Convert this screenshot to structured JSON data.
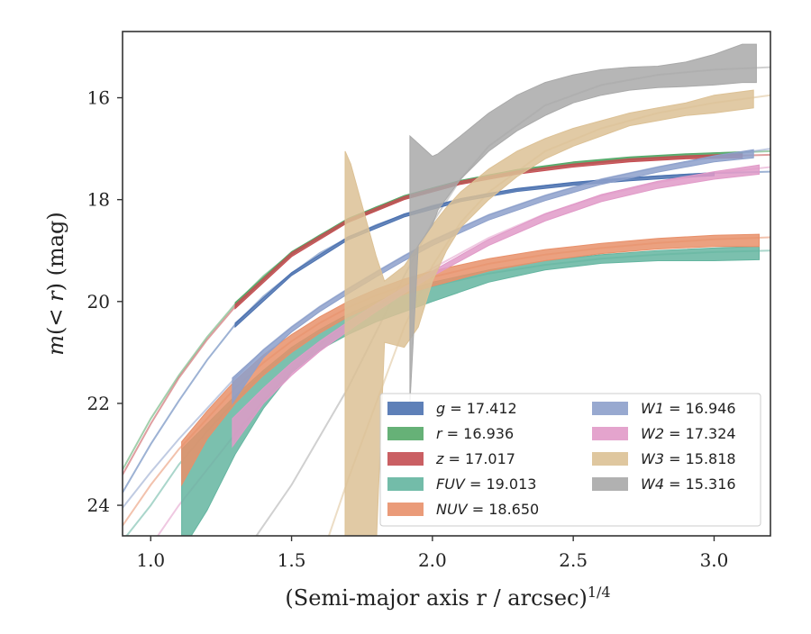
{
  "chart_data": {
    "type": "line",
    "xlabel": "(Semi-major axis r / arcsec)",
    "xlabel_exponent": "1/4",
    "ylabel": "m(< r) (mag)",
    "xlim": [
      0.9,
      3.2
    ],
    "ylim": [
      24.6,
      14.7
    ],
    "y_inverted": true,
    "xticks": [
      1.0,
      1.5,
      2.0,
      2.5,
      3.0
    ],
    "xtick_labels": [
      "1.0",
      "1.5",
      "2.0",
      "2.5",
      "3.0"
    ],
    "yticks": [
      16,
      18,
      20,
      22,
      24
    ],
    "ytick_labels": [
      "16",
      "18",
      "20",
      "22",
      "24"
    ],
    "grid": false,
    "legend_position": "lower-right",
    "legend_columns": 2,
    "series": [
      {
        "id": "g",
        "label": "g = 17.412",
        "color": "#4c72b0",
        "fit": [
          [
            0.9,
            23.75
          ],
          [
            1.0,
            22.8
          ],
          [
            1.1,
            21.95
          ],
          [
            1.2,
            21.15
          ],
          [
            1.3,
            20.45
          ],
          [
            1.4,
            19.9
          ],
          [
            1.5,
            19.45
          ],
          [
            1.6,
            19.05
          ],
          [
            1.7,
            18.75
          ],
          [
            1.8,
            18.5
          ],
          [
            1.9,
            18.3
          ],
          [
            2.0,
            18.12
          ],
          [
            2.2,
            17.88
          ],
          [
            2.4,
            17.73
          ],
          [
            2.6,
            17.62
          ],
          [
            2.8,
            17.54
          ],
          [
            3.0,
            17.48
          ],
          [
            3.2,
            17.45
          ]
        ],
        "band": {
          "x": [
            1.3,
            1.5,
            1.7,
            1.9,
            2.1,
            2.3,
            2.5,
            2.7,
            2.9,
            3.0
          ],
          "lo": [
            20.42,
            19.43,
            18.73,
            18.28,
            17.98,
            17.78,
            17.66,
            17.57,
            17.5,
            17.47
          ],
          "hi": [
            20.5,
            19.49,
            18.79,
            18.34,
            18.04,
            17.84,
            17.72,
            17.63,
            17.56,
            17.53
          ]
        }
      },
      {
        "id": "r",
        "label": "r = 16.936",
        "color": "#55a868",
        "fit": [
          [
            0.9,
            23.3
          ],
          [
            1.0,
            22.3
          ],
          [
            1.1,
            21.45
          ],
          [
            1.2,
            20.7
          ],
          [
            1.3,
            20.05
          ],
          [
            1.4,
            19.5
          ],
          [
            1.5,
            19.05
          ],
          [
            1.6,
            18.7
          ],
          [
            1.7,
            18.4
          ],
          [
            1.8,
            18.15
          ],
          [
            1.9,
            17.95
          ],
          [
            2.0,
            17.78
          ],
          [
            2.2,
            17.52
          ],
          [
            2.4,
            17.35
          ],
          [
            2.6,
            17.23
          ],
          [
            2.8,
            17.15
          ],
          [
            3.0,
            17.09
          ],
          [
            3.2,
            17.05
          ]
        ],
        "band": {
          "x": [
            1.3,
            1.5,
            1.7,
            1.9,
            2.1,
            2.3,
            2.5,
            2.7,
            2.9,
            3.1
          ],
          "lo": [
            20.02,
            19.02,
            18.37,
            17.92,
            17.62,
            17.41,
            17.26,
            17.16,
            17.1,
            17.06
          ],
          "hi": [
            20.1,
            19.08,
            18.43,
            17.98,
            17.68,
            17.47,
            17.32,
            17.22,
            17.16,
            17.12
          ]
        }
      },
      {
        "id": "z",
        "label": "z = 17.017",
        "color": "#c44e52",
        "fit": [
          [
            0.9,
            23.4
          ],
          [
            1.0,
            22.4
          ],
          [
            1.1,
            21.5
          ],
          [
            1.2,
            20.75
          ],
          [
            1.3,
            20.1
          ],
          [
            1.4,
            19.55
          ],
          [
            1.5,
            19.08
          ],
          [
            1.6,
            18.72
          ],
          [
            1.7,
            18.42
          ],
          [
            1.8,
            18.17
          ],
          [
            1.9,
            17.97
          ],
          [
            2.0,
            17.8
          ],
          [
            2.2,
            17.55
          ],
          [
            2.4,
            17.38
          ],
          [
            2.6,
            17.27
          ],
          [
            2.8,
            17.2
          ],
          [
            3.0,
            17.15
          ],
          [
            3.2,
            17.12
          ]
        ],
        "band": {
          "x": [
            1.3,
            1.5,
            1.7,
            1.9,
            2.1,
            2.3,
            2.5,
            2.7,
            2.9,
            3.1
          ],
          "lo": [
            20.06,
            19.04,
            18.39,
            17.94,
            17.64,
            17.44,
            17.3,
            17.2,
            17.14,
            17.1
          ],
          "hi": [
            20.14,
            19.12,
            18.45,
            18.0,
            17.7,
            17.5,
            17.36,
            17.26,
            17.2,
            17.18
          ]
        }
      },
      {
        "id": "FUV",
        "label": "FUV = 19.013",
        "color": "#64b5a0",
        "fit": [
          [
            0.9,
            24.7
          ],
          [
            1.0,
            24.0
          ],
          [
            1.1,
            23.2
          ],
          [
            1.2,
            22.55
          ],
          [
            1.3,
            21.95
          ],
          [
            1.4,
            21.4
          ],
          [
            1.5,
            20.95
          ],
          [
            1.6,
            20.6
          ],
          [
            1.7,
            20.3
          ],
          [
            1.8,
            20.05
          ],
          [
            1.9,
            19.85
          ],
          [
            2.0,
            19.7
          ],
          [
            2.2,
            19.45
          ],
          [
            2.4,
            19.28
          ],
          [
            2.6,
            19.16
          ],
          [
            2.8,
            19.08
          ],
          [
            3.0,
            19.03
          ],
          [
            3.2,
            19.0
          ]
        ],
        "band": {
          "x": [
            1.11,
            1.2,
            1.3,
            1.4,
            1.5,
            1.6,
            1.7,
            1.8,
            1.9,
            2.0,
            2.2,
            2.4,
            2.6,
            2.8,
            3.0,
            3.16
          ],
          "lo": [
            22.9,
            22.4,
            21.85,
            21.35,
            20.9,
            20.55,
            20.25,
            20.0,
            19.8,
            19.62,
            19.38,
            19.2,
            19.08,
            19.0,
            18.95,
            18.92
          ],
          "hi": [
            24.9,
            24.1,
            23.0,
            22.1,
            21.4,
            20.95,
            20.65,
            20.4,
            20.2,
            20.0,
            19.62,
            19.38,
            19.25,
            19.2,
            19.2,
            19.18
          ]
        }
      },
      {
        "id": "NUV",
        "label": "NUV = 18.650",
        "color": "#e8906a",
        "fit": [
          [
            0.9,
            24.4
          ],
          [
            1.0,
            23.6
          ],
          [
            1.1,
            22.9
          ],
          [
            1.2,
            22.3
          ],
          [
            1.3,
            21.7
          ],
          [
            1.4,
            21.2
          ],
          [
            1.5,
            20.78
          ],
          [
            1.6,
            20.42
          ],
          [
            1.7,
            20.12
          ],
          [
            1.8,
            19.88
          ],
          [
            1.9,
            19.68
          ],
          [
            2.0,
            19.52
          ],
          [
            2.2,
            19.26
          ],
          [
            2.4,
            19.08
          ],
          [
            2.6,
            18.95
          ],
          [
            2.8,
            18.85
          ],
          [
            3.0,
            18.78
          ],
          [
            3.2,
            18.74
          ]
        ],
        "band": {
          "x": [
            1.11,
            1.2,
            1.3,
            1.4,
            1.5,
            1.6,
            1.7,
            1.8,
            1.9,
            2.0,
            2.2,
            2.4,
            2.6,
            2.8,
            3.0,
            3.16
          ],
          "lo": [
            22.75,
            22.15,
            21.55,
            21.05,
            20.65,
            20.3,
            20.0,
            19.76,
            19.56,
            19.4,
            19.16,
            18.98,
            18.86,
            18.76,
            18.7,
            18.68
          ],
          "hi": [
            23.6,
            22.7,
            22.0,
            21.45,
            21.0,
            20.62,
            20.3,
            20.06,
            19.86,
            19.7,
            19.4,
            19.2,
            19.06,
            18.97,
            18.92,
            18.92
          ]
        }
      },
      {
        "id": "W1",
        "label": "W1 = 16.946",
        "color": "#8da0cb",
        "fit": [
          [
            0.9,
            24.05
          ],
          [
            1.0,
            23.35
          ],
          [
            1.1,
            22.7
          ],
          [
            1.2,
            22.1
          ],
          [
            1.3,
            21.5
          ],
          [
            1.4,
            20.95
          ],
          [
            1.5,
            20.5
          ],
          [
            1.6,
            20.1
          ],
          [
            1.7,
            19.75
          ],
          [
            1.8,
            19.42
          ],
          [
            1.9,
            19.1
          ],
          [
            2.0,
            18.8
          ],
          [
            2.2,
            18.3
          ],
          [
            2.4,
            17.92
          ],
          [
            2.6,
            17.6
          ],
          [
            2.8,
            17.36
          ],
          [
            3.0,
            17.16
          ],
          [
            3.2,
            17.0
          ]
        ],
        "band": {
          "x": [
            1.29,
            1.4,
            1.5,
            1.6,
            1.7,
            1.8,
            1.9,
            2.0,
            2.2,
            2.4,
            2.6,
            2.8,
            3.0,
            3.14
          ],
          "lo": [
            21.5,
            20.95,
            20.5,
            20.1,
            19.75,
            19.42,
            19.1,
            18.8,
            18.3,
            17.92,
            17.6,
            17.36,
            17.14,
            17.02
          ],
          "hi": [
            22.0,
            21.1,
            20.6,
            20.2,
            19.85,
            19.52,
            19.2,
            18.9,
            18.4,
            18.02,
            17.7,
            17.46,
            17.26,
            17.18
          ]
        }
      },
      {
        "id": "W2",
        "label": "W2 = 17.324",
        "color": "#e19ac8",
        "fit": [
          [
            0.9,
            25.6
          ],
          [
            1.0,
            24.8
          ],
          [
            1.1,
            24.0
          ],
          [
            1.2,
            23.3
          ],
          [
            1.3,
            22.6
          ],
          [
            1.4,
            21.95
          ],
          [
            1.5,
            21.35
          ],
          [
            1.6,
            20.85
          ],
          [
            1.7,
            20.42
          ],
          [
            1.8,
            20.05
          ],
          [
            1.9,
            19.7
          ],
          [
            2.0,
            19.35
          ],
          [
            2.2,
            18.75
          ],
          [
            2.4,
            18.28
          ],
          [
            2.6,
            17.92
          ],
          [
            2.8,
            17.66
          ],
          [
            3.0,
            17.48
          ],
          [
            3.2,
            17.36
          ]
        ],
        "band": {
          "x": [
            1.29,
            1.4,
            1.5,
            1.6,
            1.7,
            1.8,
            1.9,
            2.0,
            2.2,
            2.4,
            2.6,
            2.8,
            3.0,
            3.16
          ],
          "lo": [
            22.3,
            21.7,
            21.2,
            20.78,
            20.4,
            20.05,
            19.72,
            19.4,
            18.78,
            18.28,
            17.9,
            17.64,
            17.45,
            17.32
          ],
          "hi": [
            22.85,
            22.0,
            21.45,
            20.98,
            20.58,
            20.2,
            19.84,
            19.5,
            18.9,
            18.42,
            18.04,
            17.78,
            17.6,
            17.5
          ]
        }
      },
      {
        "id": "W3",
        "label": "W3 = 15.818",
        "color": "#dcc195",
        "fit": [
          [
            1.62,
            24.8
          ],
          [
            1.7,
            23.5
          ],
          [
            1.8,
            22.0
          ],
          [
            1.9,
            20.5
          ],
          [
            2.0,
            19.3
          ],
          [
            2.1,
            18.45
          ],
          [
            2.2,
            17.85
          ],
          [
            2.4,
            17.05
          ],
          [
            2.6,
            16.6
          ],
          [
            2.8,
            16.3
          ],
          [
            3.0,
            16.1
          ],
          [
            3.2,
            15.95
          ]
        ],
        "band": {
          "x": [
            1.69,
            1.71,
            1.8,
            1.83,
            1.9,
            1.95,
            2.0,
            2.05,
            2.1,
            2.2,
            2.3,
            2.4,
            2.5,
            2.6,
            2.7,
            2.8,
            2.9,
            3.0,
            3.14
          ],
          "lo": [
            17.05,
            17.3,
            19.1,
            19.6,
            19.3,
            18.9,
            18.5,
            18.15,
            17.85,
            17.4,
            17.05,
            16.8,
            16.6,
            16.45,
            16.3,
            16.2,
            16.1,
            15.95,
            15.85
          ],
          "hi": [
            24.9,
            24.9,
            24.9,
            20.8,
            20.9,
            20.5,
            19.6,
            19.0,
            18.55,
            18.0,
            17.55,
            17.2,
            16.95,
            16.75,
            16.55,
            16.45,
            16.35,
            16.3,
            16.2
          ]
        }
      },
      {
        "id": "W4",
        "label": "W4 = 15.316",
        "color": "#a9a9a9",
        "fit": [
          [
            1.35,
            24.8
          ],
          [
            1.5,
            23.6
          ],
          [
            1.7,
            21.7
          ],
          [
            1.9,
            19.5
          ],
          [
            2.0,
            18.45
          ],
          [
            2.1,
            17.6
          ],
          [
            2.2,
            16.95
          ],
          [
            2.4,
            16.15
          ],
          [
            2.6,
            15.75
          ],
          [
            2.8,
            15.55
          ],
          [
            3.0,
            15.45
          ],
          [
            3.2,
            15.4
          ]
        ],
        "band": {
          "x": [
            1.92,
            1.95,
            2.0,
            2.02,
            2.1,
            2.2,
            2.3,
            2.4,
            2.5,
            2.6,
            2.7,
            2.8,
            2.9,
            3.0,
            3.1,
            3.15
          ],
          "lo": [
            16.75,
            16.9,
            17.15,
            17.1,
            16.75,
            16.3,
            15.95,
            15.7,
            15.55,
            15.45,
            15.4,
            15.38,
            15.3,
            15.15,
            14.95,
            14.95
          ],
          "hi": [
            22.0,
            18.9,
            18.5,
            18.2,
            17.6,
            17.05,
            16.65,
            16.35,
            16.1,
            15.95,
            15.85,
            15.8,
            15.78,
            15.75,
            15.7,
            15.7
          ]
        }
      }
    ]
  }
}
